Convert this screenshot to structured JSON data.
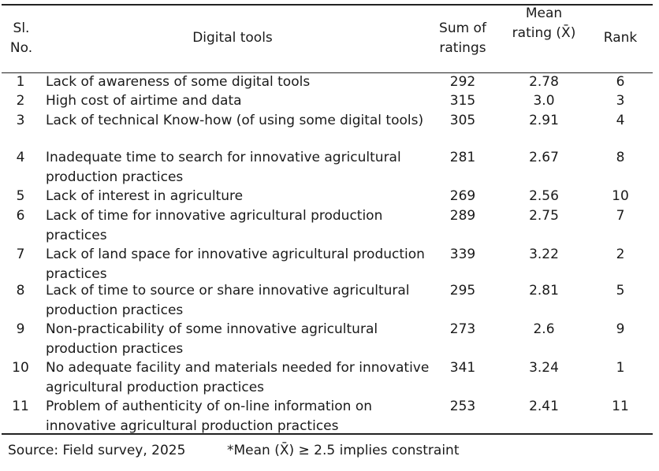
{
  "table": {
    "headers": {
      "sl_no": "Sl. No.",
      "digital_tools": "Digital tools",
      "sum_of_ratings": "Sum of ratings",
      "mean_rating": "Mean rating (X̄)",
      "rank": "Rank"
    },
    "rows": [
      {
        "sl": "1",
        "tool": "Lack of awareness of some digital tools",
        "sum": "292",
        "mean": "2.78",
        "rank": "6"
      },
      {
        "sl": "2",
        "tool": "High cost of airtime and data",
        "sum": "315",
        "mean": "3.0",
        "rank": "3"
      },
      {
        "sl": "3",
        "tool": "Lack of technical Know-how (of using some digital tools)",
        "sum": "305",
        "mean": "2.91",
        "rank": "4"
      },
      {
        "sl": "4",
        "tool": "Inadequate time to search for innovative agricultural production practices",
        "sum": "281",
        "mean": "2.67",
        "rank": "8"
      },
      {
        "sl": "5",
        "tool": "Lack of interest in agriculture",
        "sum": "269",
        "mean": "2.56",
        "rank": "10"
      },
      {
        "sl": "6",
        "tool": "Lack of time for innovative agricultural production practices",
        "sum": "289",
        "mean": "2.75",
        "rank": "7"
      },
      {
        "sl": "7",
        "tool": "Lack of land space for innovative agricultural production practices",
        "sum": "339",
        "mean": "3.22",
        "rank": "2"
      },
      {
        "sl": "8",
        "tool": "Lack of time to source or share innovative agricultural production practices",
        "sum": "295",
        "mean": "2.81",
        "rank": "5"
      },
      {
        "sl": "9",
        "tool": "Non-practicability of some innovative agricultural production practices",
        "sum": "273",
        "mean": "2.6",
        "rank": "9"
      },
      {
        "sl": "10",
        "tool": "No adequate facility and materials needed for innovative agricultural production practices",
        "sum": "341",
        "mean": "3.24",
        "rank": "1"
      },
      {
        "sl": "11",
        "tool": "Problem of authenticity of on-line information on innovative agricultural production practices",
        "sum": "253",
        "mean": "2.41",
        "rank": "11"
      }
    ]
  },
  "footer": {
    "source": "Source: Field survey, 2025",
    "note": "*Mean (X̄) ≥ 2.5 implies constraint"
  }
}
